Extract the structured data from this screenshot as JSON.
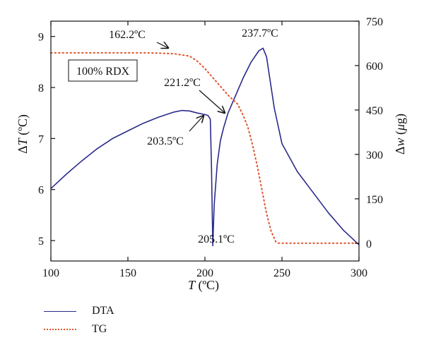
{
  "chart_data": {
    "type": "line",
    "xlabel": "T (ºC)",
    "ylabel_left": "ΔT (ºC)",
    "ylabel_right": "Δw (μg)",
    "xlim": [
      100,
      300
    ],
    "ylim_left": [
      4.6,
      9.3
    ],
    "ylim_right": [
      -60,
      750
    ],
    "x_ticks": [
      100,
      150,
      200,
      250,
      300
    ],
    "y_left_ticks": [
      5,
      6,
      7,
      8,
      9
    ],
    "y_right_ticks": [
      0,
      150,
      300,
      450,
      600,
      750
    ],
    "inset_label": "100% RDX",
    "series": [
      {
        "name": "DTA",
        "axis": "left",
        "color": "#2a2a8c",
        "style": "solid",
        "x": [
          100,
          110,
          120,
          130,
          140,
          150,
          160,
          170,
          180,
          185,
          190,
          195,
          200,
          202,
          203.5,
          204.2,
          205.1,
          206,
          208,
          210,
          212,
          215,
          220,
          225,
          230,
          235,
          237.7,
          240,
          245,
          250,
          260,
          270,
          280,
          290,
          300
        ],
        "y": [
          6.02,
          6.3,
          6.56,
          6.8,
          7.0,
          7.15,
          7.3,
          7.42,
          7.52,
          7.55,
          7.54,
          7.5,
          7.47,
          7.45,
          7.38,
          6.5,
          4.9,
          5.7,
          6.5,
          6.95,
          7.2,
          7.5,
          7.85,
          8.2,
          8.5,
          8.72,
          8.77,
          8.6,
          7.6,
          6.9,
          6.35,
          5.95,
          5.55,
          5.2,
          4.92
        ]
      },
      {
        "name": "TG",
        "axis": "right",
        "color": "#e0542c",
        "style": "dotted",
        "x": [
          100,
          120,
          140,
          160,
          162.2,
          170,
          180,
          190,
          195,
          200,
          205,
          210,
          215,
          221.2,
          225,
          228,
          231,
          234,
          237,
          240,
          243,
          246,
          248,
          250,
          260,
          280,
          300
        ],
        "y": [
          643,
          643,
          643,
          643,
          643,
          642,
          640,
          632,
          615,
          590,
          560,
          530,
          500,
          470,
          430,
          390,
          330,
          260,
          180,
          100,
          40,
          5,
          0,
          0,
          0,
          0,
          0
        ]
      }
    ],
    "annotations": [
      {
        "text": "162.2ºC",
        "x": 162.2,
        "axis": "right",
        "y": 643
      },
      {
        "text": "237.7ºC",
        "x": 237.7,
        "axis": "left",
        "y": 8.77
      },
      {
        "text": "221.2ºC",
        "x": 221.2,
        "axis": "left",
        "y": 7.6
      },
      {
        "text": "203.5ºC",
        "x": 203.5,
        "axis": "left",
        "y": 7.38
      },
      {
        "text": "205.1ºC",
        "x": 205.1,
        "axis": "left",
        "y": 4.9
      }
    ]
  },
  "legend": {
    "items": [
      {
        "label": "DTA"
      },
      {
        "label": "TG"
      }
    ]
  }
}
